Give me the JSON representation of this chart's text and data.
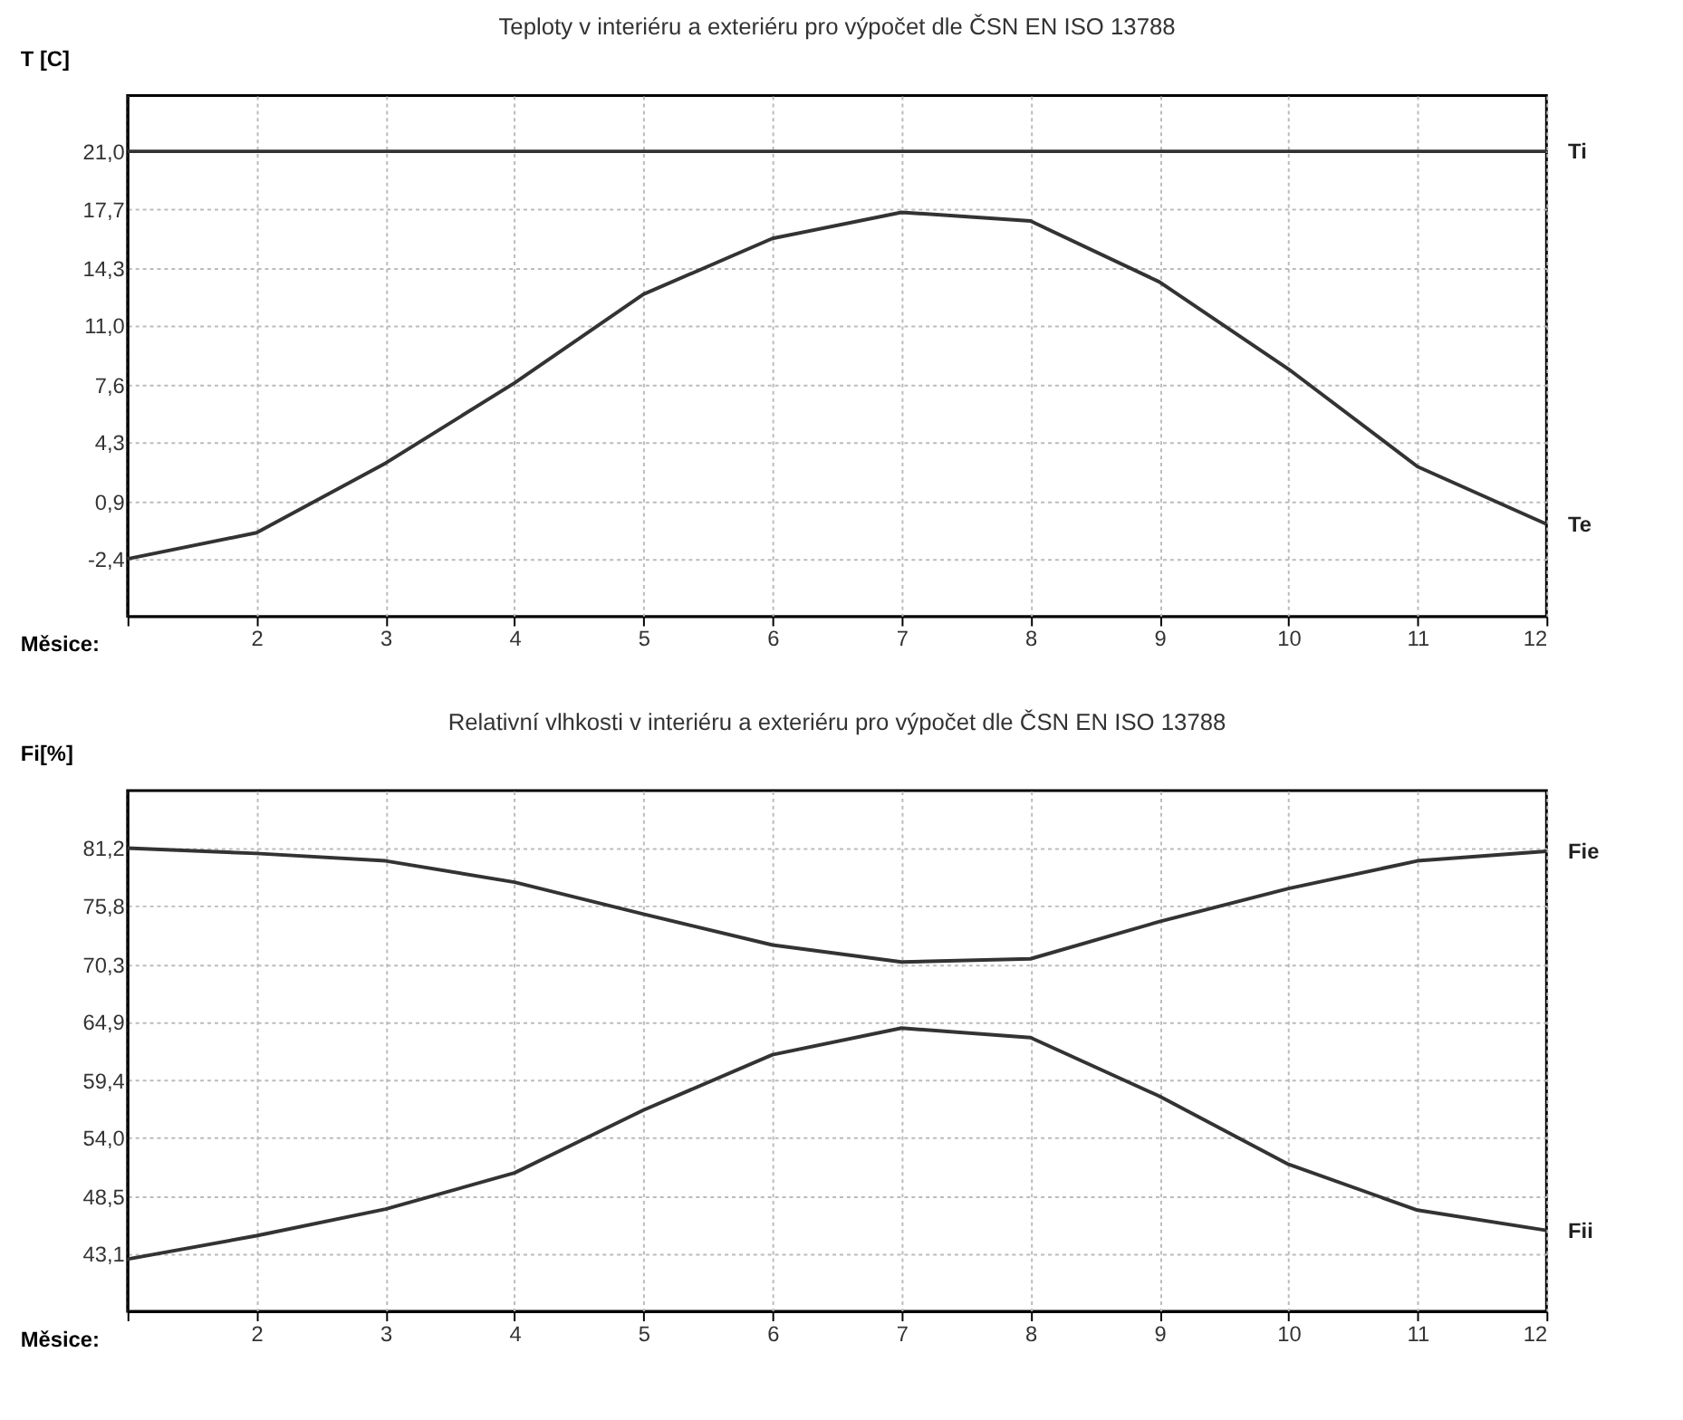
{
  "chart_data": [
    {
      "type": "line",
      "title": "Teploty v interiéru a exteriéru pro výpočet dle ČSN EN ISO 13788",
      "xlabel": "Měsice:",
      "ylabel": "T [C]",
      "x": [
        1,
        2,
        3,
        4,
        5,
        6,
        7,
        8,
        9,
        10,
        11,
        12
      ],
      "xlim": [
        1,
        12
      ],
      "xticks": [
        {
          "value": 1,
          "label": null
        },
        2,
        3,
        4,
        5,
        6,
        7,
        8,
        9,
        10,
        11,
        12
      ],
      "ylim": [
        -5.7,
        24.2
      ],
      "yticks": [
        {
          "value": -2.4,
          "label": "-2,4"
        },
        {
          "value": 0.9,
          "label": "0,9"
        },
        {
          "value": 4.3,
          "label": "4,3"
        },
        {
          "value": 7.6,
          "label": "7,6"
        },
        {
          "value": 11.0,
          "label": "11,0"
        },
        {
          "value": 14.3,
          "label": "14,3"
        },
        {
          "value": 17.7,
          "label": "17,7"
        },
        {
          "value": 21.0,
          "label": "21,0"
        }
      ],
      "grid": true,
      "line_style": "solid",
      "series": [
        {
          "name": "Ti",
          "color": "#333333",
          "values": [
            21.0,
            21.0,
            21.0,
            21.0,
            21.0,
            21.0,
            21.0,
            21.0,
            21.0,
            21.0,
            21.0,
            21.0
          ]
        },
        {
          "name": "Te",
          "color": "#333333",
          "values": [
            -2.4,
            -0.9,
            3.1,
            7.7,
            12.8,
            16.0,
            17.5,
            17.0,
            13.5,
            8.5,
            2.9,
            -0.4
          ]
        }
      ]
    },
    {
      "type": "line",
      "title": "Relativní vlhkosti v interiéru a exteriéru pro výpočet dle ČSN EN ISO 13788",
      "xlabel": "Měsice:",
      "ylabel": "Fi[%]",
      "x": [
        1,
        2,
        3,
        4,
        5,
        6,
        7,
        8,
        9,
        10,
        11,
        12
      ],
      "xlim": [
        1,
        12
      ],
      "xticks": [
        {
          "value": 1,
          "label": null
        },
        2,
        3,
        4,
        5,
        6,
        7,
        8,
        9,
        10,
        11,
        12
      ],
      "ylim": [
        37.7,
        86.6
      ],
      "yticks": [
        {
          "value": 43.1,
          "label": "43,1"
        },
        {
          "value": 48.5,
          "label": "48,5"
        },
        {
          "value": 54.0,
          "label": "54,0"
        },
        {
          "value": 59.4,
          "label": "59,4"
        },
        {
          "value": 64.9,
          "label": "64,9"
        },
        {
          "value": 70.3,
          "label": "70,3"
        },
        {
          "value": 75.8,
          "label": "75,8"
        },
        {
          "value": 81.2,
          "label": "81,2"
        }
      ],
      "grid": true,
      "line_style": "solid",
      "series": [
        {
          "name": "Fie",
          "color": "#333333",
          "values": [
            81.2,
            80.7,
            80.0,
            78.0,
            75.0,
            72.1,
            70.5,
            70.8,
            74.3,
            77.4,
            80.0,
            80.9
          ]
        },
        {
          "name": "Fii",
          "color": "#333333",
          "values": [
            42.6,
            44.8,
            47.3,
            50.7,
            56.6,
            61.8,
            64.3,
            63.4,
            57.9,
            51.5,
            47.2,
            45.3
          ]
        }
      ]
    }
  ]
}
